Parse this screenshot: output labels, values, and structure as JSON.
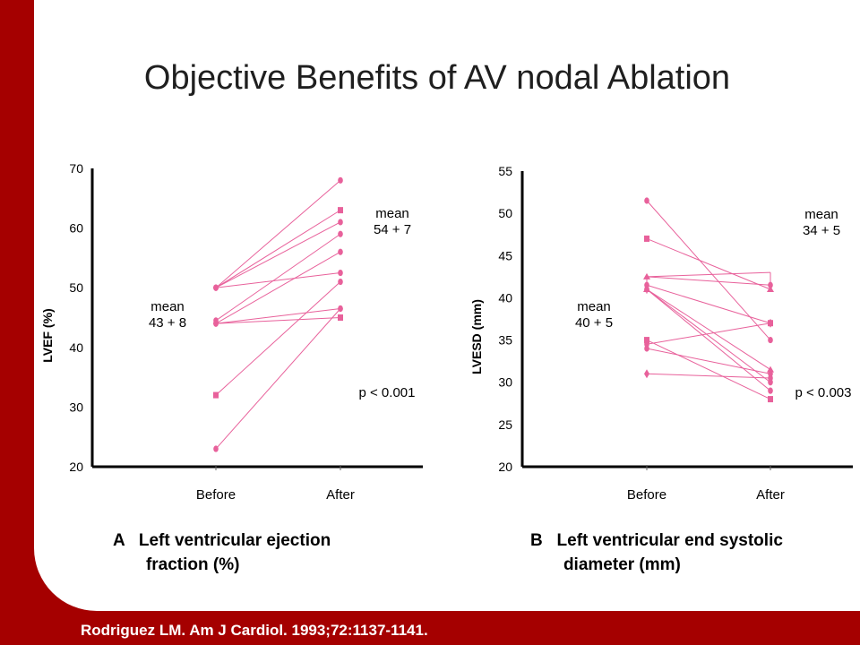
{
  "slide": {
    "title": "Objective Benefits of AV nodal Ablation",
    "citation": "Rodriguez LM. Am J Cardiol.  1993;72:1137-1141.",
    "colors": {
      "border": "#a50000",
      "series": "#e8619b",
      "axis": "#000000"
    }
  },
  "chart_data": [
    {
      "type": "line",
      "caption": "A   Left ventricular ejection\n       fraction (%)",
      "categories": [
        "Before",
        "After"
      ],
      "ylabel": "LVEF (%)",
      "ylim": [
        20,
        70
      ],
      "yticks": [
        20,
        30,
        40,
        50,
        60,
        70
      ],
      "grid": false,
      "pairs": [
        [
          50,
          68
        ],
        [
          50,
          63
        ],
        [
          50,
          61
        ],
        [
          50,
          52.5
        ],
        [
          44.5,
          59
        ],
        [
          44,
          56
        ],
        [
          44,
          46.5
        ],
        [
          44,
          45
        ],
        [
          32,
          51
        ],
        [
          23,
          46.5
        ]
      ],
      "annotations": [
        {
          "id": "before_mean",
          "lines": [
            "mean",
            "43 + 8"
          ]
        },
        {
          "id": "after_mean",
          "lines": [
            "mean",
            "54 + 7"
          ]
        },
        {
          "id": "p_value",
          "lines": [
            "p < 0.001"
          ]
        }
      ]
    },
    {
      "type": "line",
      "caption": "B   Left ventricular end systolic\n       diameter (mm)",
      "categories": [
        "Before",
        "After"
      ],
      "ylabel": "LVESD (mm)",
      "ylim": [
        20,
        55
      ],
      "yticks": [
        20,
        25,
        30,
        35,
        40,
        45,
        50,
        55
      ],
      "grid": false,
      "pairs": [
        [
          51.5,
          35
        ],
        [
          47,
          41
        ],
        [
          42.5,
          41.5
        ],
        [
          41.5,
          37
        ],
        [
          41,
          31.5
        ],
        [
          41,
          29
        ],
        [
          41,
          30
        ],
        [
          35,
          28
        ],
        [
          34.5,
          37
        ],
        [
          34,
          31
        ],
        [
          31,
          30.5
        ]
      ],
      "bracket": {
        "before": [
          42.5,
          40.5
        ],
        "after": [
          43,
          41
        ]
      },
      "annotations": [
        {
          "id": "before_mean",
          "lines": [
            "mean",
            "40 + 5"
          ]
        },
        {
          "id": "after_mean",
          "lines": [
            "mean",
            "34 + 5"
          ]
        },
        {
          "id": "p_value",
          "lines": [
            "p < 0.003"
          ]
        }
      ]
    }
  ]
}
